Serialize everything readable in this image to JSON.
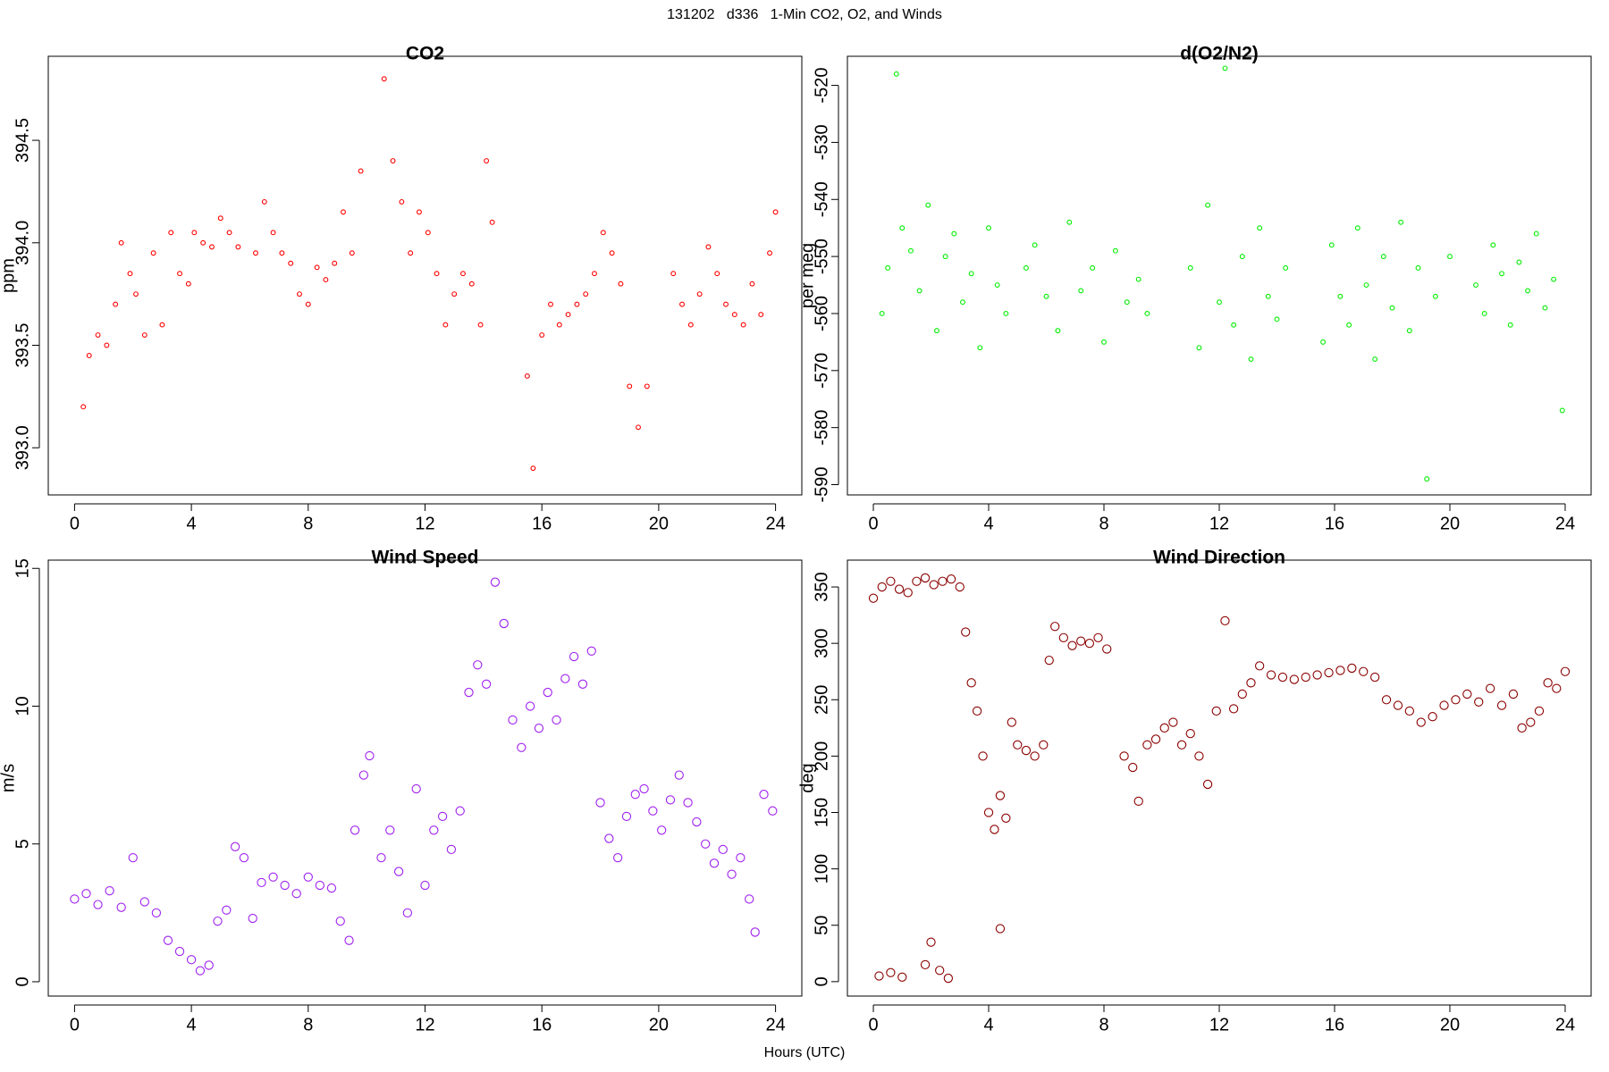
{
  "page": {
    "title": "131202   d336   1-Min CO2, O2, and Winds",
    "xlabel": "Hours (UTC)"
  },
  "chart_data": [
    {
      "type": "scatter",
      "title": "CO2",
      "ylabel": "ppm",
      "color": "#ff0000",
      "xlim": [
        -0.9,
        24.9
      ],
      "xticks": [
        0,
        4,
        8,
        12,
        16,
        20,
        24
      ],
      "ylim": [
        392.77,
        394.91
      ],
      "yticks": [
        {
          "value": 393,
          "label": "393.0"
        },
        393.5,
        {
          "value": 394,
          "label": "394.0"
        },
        394.5
      ],
      "x": [
        0.3,
        0.5,
        0.8,
        1.1,
        1.4,
        1.6,
        1.9,
        2.1,
        2.4,
        2.7,
        3.0,
        3.3,
        3.6,
        3.9,
        4.1,
        4.4,
        4.7,
        5.0,
        5.3,
        5.6,
        6.2,
        6.5,
        6.8,
        7.1,
        7.4,
        7.7,
        8.0,
        8.3,
        8.6,
        8.9,
        9.2,
        9.5,
        9.8,
        10.6,
        10.9,
        11.2,
        11.5,
        11.8,
        12.1,
        12.4,
        12.7,
        13.0,
        13.3,
        13.6,
        13.9,
        14.1,
        14.3,
        15.5,
        15.7,
        16.0,
        16.3,
        16.6,
        16.9,
        17.2,
        17.5,
        17.8,
        18.1,
        18.4,
        18.7,
        19.0,
        19.3,
        19.6,
        20.5,
        20.8,
        21.1,
        21.4,
        21.7,
        22.0,
        22.3,
        22.6,
        22.9,
        23.2,
        23.5,
        23.8,
        24.0
      ],
      "values": [
        393.2,
        393.45,
        393.55,
        393.5,
        393.7,
        394.0,
        393.85,
        393.75,
        393.55,
        393.95,
        393.6,
        394.05,
        393.85,
        393.8,
        394.05,
        394.0,
        393.98,
        394.12,
        394.05,
        393.98,
        393.95,
        394.2,
        394.05,
        393.95,
        393.9,
        393.75,
        393.7,
        393.88,
        393.82,
        393.9,
        394.15,
        393.95,
        394.35,
        394.8,
        394.4,
        394.2,
        393.95,
        394.15,
        394.05,
        393.85,
        393.6,
        393.75,
        393.85,
        393.8,
        393.6,
        394.4,
        394.1,
        393.35,
        392.9,
        393.55,
        393.7,
        393.6,
        393.65,
        393.7,
        393.75,
        393.85,
        394.05,
        393.95,
        393.8,
        393.3,
        393.1,
        393.3,
        393.85,
        393.7,
        393.6,
        393.75,
        393.98,
        393.85,
        393.7,
        393.65,
        393.6,
        393.8,
        393.65,
        393.95,
        394.15
      ]
    },
    {
      "type": "scatter",
      "title": "d(O2/N2)",
      "ylabel": "per meg",
      "color": "#00ee00",
      "xlim": [
        -0.9,
        24.9
      ],
      "xticks": [
        0,
        4,
        8,
        12,
        16,
        20,
        24
      ],
      "ylim": [
        -591.8,
        -514.9
      ],
      "yticks": [
        -590,
        -580,
        -570,
        -560,
        -550,
        -540,
        -530,
        -520
      ],
      "x": [
        0.3,
        0.5,
        0.8,
        1.0,
        1.3,
        1.6,
        1.9,
        2.2,
        2.5,
        2.8,
        3.1,
        3.4,
        3.7,
        4.0,
        4.3,
        4.6,
        5.3,
        5.6,
        6.0,
        6.4,
        6.8,
        7.2,
        7.6,
        8.0,
        8.4,
        8.8,
        9.2,
        9.5,
        11.0,
        11.3,
        11.6,
        12.0,
        12.2,
        12.5,
        12.8,
        13.1,
        13.4,
        13.7,
        14.0,
        14.3,
        15.6,
        15.9,
        16.2,
        16.5,
        16.8,
        17.1,
        17.4,
        17.7,
        18.0,
        18.3,
        18.6,
        18.9,
        19.2,
        19.5,
        20.0,
        20.9,
        21.2,
        21.5,
        21.8,
        22.1,
        22.4,
        22.7,
        23.0,
        23.3,
        23.6,
        23.9
      ],
      "values": [
        -560,
        -552,
        -518,
        -545,
        -549,
        -556,
        -541,
        -563,
        -550,
        -546,
        -558,
        -553,
        -566,
        -545,
        -555,
        -560,
        -552,
        -548,
        -557,
        -563,
        -544,
        -556,
        -552,
        -565,
        -549,
        -558,
        -554,
        -560,
        -552,
        -566,
        -541,
        -558,
        -517,
        -562,
        -550,
        -568,
        -545,
        -557,
        -561,
        -552,
        -565,
        -548,
        -557,
        -562,
        -545,
        -555,
        -568,
        -550,
        -559,
        -544,
        -563,
        -552,
        -589,
        -557,
        -550,
        -555,
        -560,
        -548,
        -553,
        -562,
        -551,
        -556,
        -546,
        -559,
        -554,
        -577
      ]
    },
    {
      "type": "scatter",
      "title": "Wind Speed",
      "ylabel": "m/s",
      "color": "#a020f0",
      "xlim": [
        -0.9,
        24.9
      ],
      "xticks": [
        0,
        4,
        8,
        12,
        16,
        20,
        24
      ],
      "ylim": [
        -0.52,
        15.3
      ],
      "yticks": [
        0,
        5,
        10,
        15
      ],
      "x": [
        0,
        0.4,
        0.8,
        1.2,
        1.6,
        2.0,
        2.4,
        2.8,
        3.2,
        3.6,
        4.0,
        4.3,
        4.6,
        4.9,
        5.2,
        5.5,
        5.8,
        6.1,
        6.4,
        6.8,
        7.2,
        7.6,
        8.0,
        8.4,
        8.8,
        9.1,
        9.4,
        9.6,
        9.9,
        10.1,
        10.5,
        10.8,
        11.1,
        11.4,
        11.7,
        12.0,
        12.3,
        12.6,
        12.9,
        13.2,
        13.5,
        13.8,
        14.1,
        14.4,
        14.7,
        15.0,
        15.3,
        15.6,
        15.9,
        16.2,
        16.5,
        16.8,
        17.1,
        17.4,
        17.7,
        18.0,
        18.3,
        18.6,
        18.9,
        19.2,
        19.5,
        19.8,
        20.1,
        20.4,
        20.7,
        21.0,
        21.3,
        21.6,
        21.9,
        22.2,
        22.5,
        22.8,
        23.1,
        23.3,
        23.6,
        23.9
      ],
      "values": [
        3,
        3.2,
        2.8,
        3.3,
        2.7,
        4.5,
        2.9,
        2.5,
        1.5,
        1.1,
        0.8,
        0.4,
        0.6,
        2.2,
        2.6,
        4.9,
        4.5,
        2.3,
        3.6,
        3.8,
        3.5,
        3.2,
        3.8,
        3.5,
        3.4,
        2.2,
        1.5,
        5.5,
        7.5,
        8.2,
        4.5,
        5.5,
        4.0,
        2.5,
        7.0,
        3.5,
        5.5,
        6.0,
        4.8,
        6.2,
        10.5,
        11.5,
        10.8,
        14.5,
        13.0,
        9.5,
        8.5,
        10.0,
        9.2,
        10.5,
        9.5,
        11.0,
        11.8,
        10.8,
        12.0,
        6.5,
        5.2,
        4.5,
        6.0,
        6.8,
        7.0,
        6.2,
        5.5,
        6.6,
        7.5,
        6.5,
        5.8,
        5.0,
        4.3,
        4.8,
        3.9,
        4.5,
        3.0,
        1.8,
        6.8,
        6.2
      ]
    },
    {
      "type": "scatter",
      "title": "Wind Direction",
      "ylabel": "deg",
      "color": "#8b0000",
      "xlim": [
        -0.9,
        24.9
      ],
      "xticks": [
        0,
        4,
        8,
        12,
        16,
        20,
        24
      ],
      "ylim": [
        -12.8,
        373.8
      ],
      "yticks": [
        0,
        50,
        100,
        150,
        200,
        250,
        300,
        350
      ],
      "x": [
        0,
        0.3,
        0.6,
        0.9,
        1.2,
        1.5,
        1.8,
        2.1,
        2.4,
        2.7,
        3.0,
        3.2,
        3.4,
        3.6,
        3.8,
        4.0,
        4.2,
        4.4,
        4.6,
        4.8,
        5.0,
        5.3,
        5.6,
        5.9,
        6.1,
        6.3,
        6.6,
        6.9,
        7.2,
        7.5,
        7.8,
        8.1,
        8.7,
        9.0,
        9.2,
        9.5,
        9.8,
        10.1,
        10.4,
        10.7,
        11.0,
        11.3,
        11.6,
        11.9,
        12.2,
        12.5,
        12.8,
        13.1,
        13.4,
        13.8,
        14.2,
        14.6,
        15.0,
        15.4,
        15.8,
        16.2,
        16.6,
        17.0,
        17.4,
        17.8,
        18.2,
        18.6,
        19.0,
        19.4,
        19.8,
        20.2,
        20.6,
        21.0,
        21.4,
        21.8,
        22.2,
        22.5,
        22.8,
        23.1,
        23.4,
        23.7,
        24.0,
        0.2,
        0.6,
        1.0,
        1.8,
        2.0,
        2.3,
        2.6,
        4.4
      ],
      "values": [
        340,
        350,
        355,
        348,
        345,
        355,
        358,
        352,
        355,
        357,
        350,
        310,
        265,
        240,
        200,
        150,
        135,
        165,
        145,
        230,
        210,
        205,
        200,
        210,
        285,
        315,
        305,
        298,
        302,
        300,
        305,
        295,
        200,
        190,
        160,
        210,
        215,
        225,
        230,
        210,
        220,
        200,
        175,
        240,
        320,
        242,
        255,
        265,
        280,
        272,
        270,
        268,
        270,
        272,
        274,
        276,
        278,
        275,
        270,
        250,
        245,
        240,
        230,
        235,
        245,
        250,
        255,
        248,
        260,
        245,
        255,
        225,
        230,
        240,
        265,
        260,
        275,
        5,
        8,
        4,
        15,
        35,
        10,
        3,
        47
      ]
    }
  ]
}
